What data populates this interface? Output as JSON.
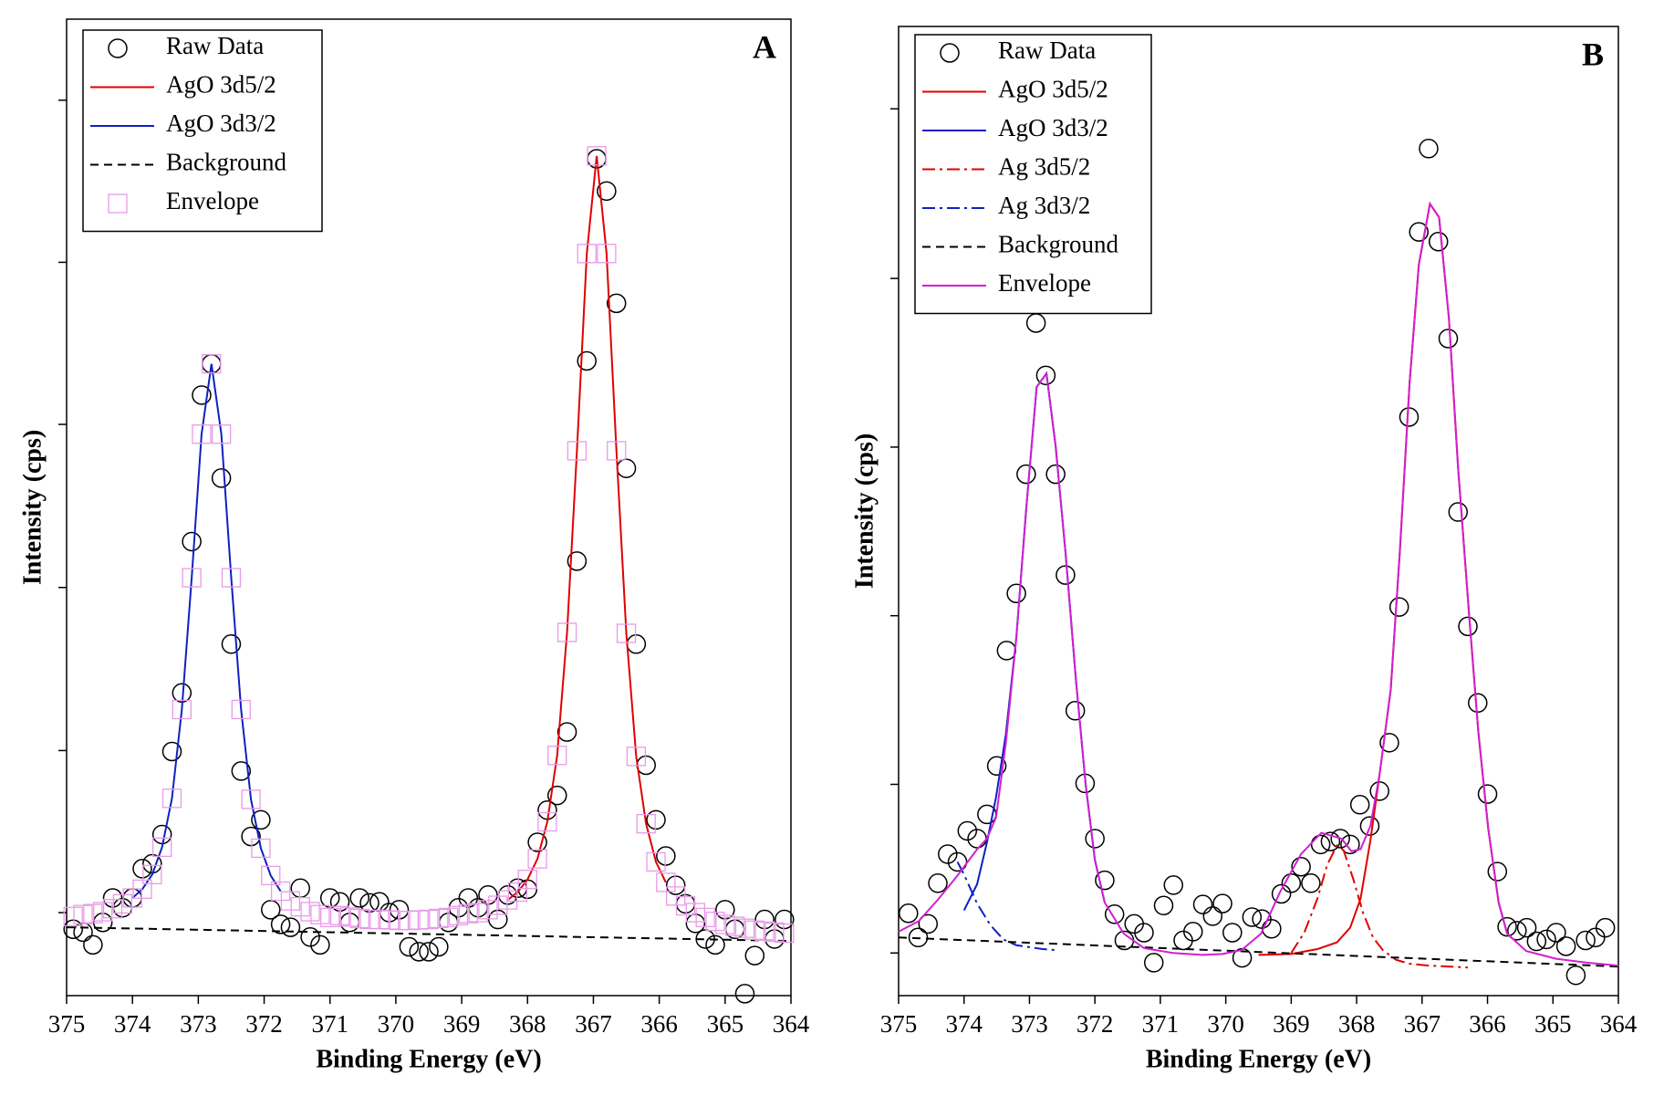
{
  "chart_data": [
    {
      "type": "scatter",
      "label": "A",
      "xlabel": "Binding Energy (eV)",
      "ylabel": "Intensity (cps)",
      "xlim": [
        375,
        364
      ],
      "ylim": [
        0,
        100
      ],
      "xticks": [
        375,
        374,
        373,
        372,
        371,
        370,
        369,
        368,
        367,
        366,
        365,
        364
      ],
      "yticks": [
        8.5,
        25.1,
        41.8,
        58.5,
        75.1,
        91.7
      ],
      "series": [
        {
          "name": "Raw Data",
          "color": "#000000",
          "kind": "marker",
          "marker": "circle",
          "x": [
            374.9,
            374.75,
            374.6,
            374.45,
            374.3,
            374.15,
            374,
            373.85,
            373.7,
            373.55,
            373.4,
            373.25,
            373.1,
            372.95,
            372.8,
            372.65,
            372.5,
            372.35,
            372.2,
            372.05,
            371.9,
            371.75,
            371.6,
            371.45,
            371.3,
            371.15,
            371,
            370.85,
            370.7,
            370.55,
            370.4,
            370.25,
            370.1,
            369.95,
            369.8,
            369.65,
            369.5,
            369.35,
            369.2,
            369.05,
            368.9,
            368.75,
            368.6,
            368.45,
            368.3,
            368.15,
            368,
            367.85,
            367.7,
            367.55,
            367.4,
            367.25,
            367.1,
            366.95,
            366.8,
            366.65,
            366.5,
            366.35,
            366.2,
            366.05,
            365.9,
            365.75,
            365.6,
            365.45,
            365.3,
            365.15,
            365,
            364.85,
            364.7,
            364.55,
            364.4,
            364.25,
            364.1
          ],
          "values": [
            6.8,
            6.5,
            5.2,
            7.5,
            10,
            9,
            10,
            13,
            13.5,
            16.5,
            25,
            31,
            46.5,
            61.5,
            64.7,
            53,
            36,
            23,
            16.3,
            18,
            8.8,
            7.3,
            7,
            11,
            6,
            5.2,
            10,
            9.6,
            7.5,
            10,
            9.5,
            9.6,
            8.5,
            8.8,
            5,
            4.5,
            4.5,
            5,
            7.5,
            9,
            10,
            9,
            10.3,
            7.8,
            10.3,
            11,
            10.9,
            15.7,
            19,
            20.5,
            27,
            44.5,
            65,
            85.7,
            82.4,
            70.9,
            54,
            36,
            23.6,
            18,
            14.3,
            11.3,
            9.4,
            7.4,
            5.8,
            5.2,
            8.8,
            6.8,
            0.2,
            4.1,
            7.8,
            5.8,
            7.8
          ]
        },
        {
          "name": "AgO 3d5/2",
          "color": "#e00000",
          "kind": "line",
          "dash": "solid",
          "x": [
            368.3,
            368.15,
            368,
            367.85,
            367.7,
            367.55,
            367.4,
            367.25,
            367.1,
            366.95,
            366.8,
            366.65,
            366.5,
            366.35,
            366.2,
            366.05,
            365.9
          ],
          "values": [
            9.8,
            10.6,
            11.9,
            14.0,
            17.8,
            24.6,
            37.2,
            55.8,
            76,
            86,
            76,
            55.8,
            37.1,
            24.5,
            17.6,
            13.7,
            11.6
          ]
        },
        {
          "name": "AgO 3d3/2",
          "color": "#1020c0",
          "kind": "line",
          "dash": "solid",
          "x": [
            374,
            373.85,
            373.7,
            373.55,
            373.4,
            373.25,
            373.1,
            372.95,
            372.8,
            372.65,
            372.5,
            372.35,
            372.2,
            372.05,
            371.9,
            371.75
          ],
          "values": [
            10.0,
            10.9,
            12.4,
            15.2,
            20.2,
            29.3,
            42.8,
            57.5,
            64.7,
            57.5,
            42.8,
            29.3,
            20.1,
            15.1,
            12.3,
            10.7
          ]
        },
        {
          "name": "Background",
          "color": "#000000",
          "kind": "line",
          "dash": "dash",
          "x": [
            375,
            364
          ],
          "values": [
            7.0,
            5.6
          ]
        },
        {
          "name": "Envelope",
          "color": "#e89ae8",
          "kind": "marker",
          "marker": "square",
          "x": [
            374.9,
            374.75,
            374.6,
            374.45,
            374.3,
            374.15,
            374,
            373.85,
            373.7,
            373.55,
            373.4,
            373.25,
            373.1,
            372.95,
            372.8,
            372.65,
            372.5,
            372.35,
            372.2,
            372.05,
            371.9,
            371.75,
            371.6,
            371.45,
            371.3,
            371.15,
            371,
            370.85,
            370.7,
            370.55,
            370.4,
            370.25,
            370.1,
            369.95,
            369.8,
            369.65,
            369.5,
            369.35,
            369.2,
            369.05,
            368.9,
            368.75,
            368.6,
            368.45,
            368.3,
            368.15,
            368,
            367.85,
            367.7,
            367.55,
            367.4,
            367.25,
            367.1,
            366.95,
            366.8,
            366.65,
            366.5,
            366.35,
            366.2,
            366.05,
            365.9,
            365.75,
            365.6,
            365.45,
            365.3,
            365.15,
            365,
            364.85,
            364.7,
            364.55,
            364.4,
            364.25,
            364.1
          ],
          "values": [
            8.1,
            8.3,
            8.4,
            8.6,
            8.9,
            9.4,
            10.0,
            10.9,
            12.4,
            15.2,
            20.2,
            29.3,
            42.8,
            57.5,
            64.7,
            57.5,
            42.8,
            29.3,
            20.1,
            15.1,
            12.3,
            10.7,
            9.7,
            9.1,
            8.6,
            8.3,
            8.0,
            8.2,
            8.05,
            7.9,
            7.8,
            7.8,
            7.75,
            7.7,
            7.7,
            7.75,
            7.8,
            7.9,
            8.0,
            8.2,
            8.4,
            8.5,
            8.8,
            9.25,
            9.8,
            10.6,
            11.9,
            14.0,
            17.8,
            24.6,
            37.2,
            55.8,
            76,
            86,
            76,
            55.8,
            37.1,
            24.5,
            17.6,
            13.7,
            11.6,
            10.2,
            9.2,
            8.5,
            8.0,
            7.6,
            7.3,
            7.1,
            6.9,
            6.7,
            6.6,
            6.5,
            6.4
          ]
        }
      ]
    },
    {
      "type": "scatter",
      "label": "B",
      "xlabel": "Binding Energy (eV)",
      "ylabel": "Intensity (cps)",
      "xlim": [
        375,
        364
      ],
      "ylim": [
        0,
        100
      ],
      "xticks": [
        375,
        374,
        373,
        372,
        371,
        370,
        369,
        368,
        367,
        366,
        365,
        364
      ],
      "yticks": [
        4.4,
        21.8,
        39.2,
        56.6,
        74.0,
        91.5
      ],
      "series": [
        {
          "name": "Raw Data",
          "color": "#000000",
          "kind": "marker",
          "marker": "circle",
          "x": [
            374.85,
            374.7,
            374.55,
            374.4,
            374.25,
            374.1,
            373.95,
            373.8,
            373.65,
            373.5,
            373.35,
            373.2,
            373.05,
            372.9,
            372.75,
            372.6,
            372.45,
            372.3,
            372.15,
            372,
            371.85,
            371.7,
            371.55,
            371.4,
            371.25,
            371.1,
            370.95,
            370.8,
            370.65,
            370.5,
            370.35,
            370.2,
            370.05,
            369.9,
            369.75,
            369.6,
            369.45,
            369.3,
            369.15,
            369,
            368.85,
            368.7,
            368.55,
            368.4,
            368.25,
            368.1,
            367.95,
            367.8,
            367.65,
            367.5,
            367.35,
            367.2,
            367.05,
            366.9,
            366.75,
            366.6,
            366.45,
            366.3,
            366.15,
            366,
            365.85,
            365.7,
            365.55,
            365.4,
            365.25,
            365.1,
            364.95,
            364.8,
            364.65,
            364.5,
            364.35,
            364.2
          ],
          "values": [
            8.5,
            6.0,
            7.4,
            11.6,
            14.6,
            13.8,
            17.0,
            16.2,
            18.7,
            23.7,
            35.6,
            41.5,
            53.8,
            69.4,
            64.0,
            53.8,
            43.4,
            29.4,
            21.9,
            16.2,
            11.9,
            8.4,
            5.7,
            7.4,
            6.5,
            3.4,
            9.3,
            11.4,
            5.7,
            6.6,
            9.4,
            8.2,
            9.5,
            6.5,
            3.9,
            8.1,
            7.9,
            6.9,
            10.5,
            11.6,
            13.3,
            11.6,
            15.6,
            15.9,
            16.2,
            15.6,
            19.7,
            17.5,
            21.1,
            26.1,
            40.1,
            59.7,
            78.8,
            87.4,
            77.8,
            67.8,
            49.9,
            38.1,
            30.2,
            20.8,
            12.8,
            7.1,
            6.7,
            7.0,
            5.6,
            5.8,
            6.5,
            5.1,
            2.1,
            5.7,
            6.0,
            7.0
          ]
        },
        {
          "name": "AgO 3d5/2",
          "color": "#e00000",
          "kind": "line",
          "dash": "solid",
          "x": [
            369.5,
            369,
            368.6,
            368.3,
            368.1,
            367.94,
            367.79,
            367.65,
            367.48,
            367.34,
            367.19,
            367.05,
            366.88,
            366.74,
            366.59,
            366.45,
            366.28,
            366.14,
            365.99,
            365.83,
            365.7
          ],
          "values": [
            4.2,
            4.3,
            4.8,
            5.5,
            7.0,
            10,
            16,
            22.8,
            31.5,
            45.8,
            63.3,
            75.4,
            81.7,
            80.3,
            69.9,
            54.5,
            39.2,
            27.2,
            17.3,
            9.6,
            6.4
          ]
        },
        {
          "name": "AgO 3d3/2",
          "color": "#1020c0",
          "kind": "line",
          "dash": "solid",
          "x": [
            374,
            373.8,
            373.65,
            373.51,
            373.36,
            373.2,
            373.05,
            372.89,
            372.74,
            372.6,
            372.45,
            372.29,
            372.14,
            372,
            371.85
          ],
          "values": [
            8.8,
            11.5,
            15.8,
            20.5,
            27,
            37,
            50.2,
            62.8,
            64.2,
            56.7,
            45.8,
            32.6,
            21.7,
            14,
            9.6
          ]
        },
        {
          "name": "Ag 3d5/2",
          "color": "#e00000",
          "kind": "line",
          "dash": "dashdot",
          "x": [
            369,
            368.8,
            368.6,
            368.45,
            368.3,
            368.2,
            368.05,
            367.9,
            367.75,
            367.6,
            367.4,
            367.2,
            366.9,
            366.6,
            366.3
          ],
          "values": [
            4.4,
            6.5,
            10,
            13.5,
            15.5,
            15,
            12,
            8.5,
            6,
            4.7,
            3.7,
            3.3,
            3.1,
            3.0,
            2.9
          ]
        },
        {
          "name": "Ag 3d3/2",
          "color": "#1020c0",
          "kind": "line",
          "dash": "dashdot",
          "x": [
            374.1,
            374,
            373.8,
            373.6,
            373.4,
            373.2,
            373,
            372.8,
            372.6
          ],
          "values": [
            13.8,
            12.5,
            9.5,
            7.3,
            5.8,
            5.2,
            5.0,
            4.8,
            4.7
          ]
        },
        {
          "name": "Background",
          "color": "#000000",
          "kind": "line",
          "dash": "dash",
          "x": [
            375,
            364
          ],
          "values": [
            6.0,
            3.0
          ]
        },
        {
          "name": "Envelope",
          "color": "#d020d0",
          "kind": "line",
          "dash": "solid",
          "x": [
            375,
            374.69,
            374.4,
            374.11,
            373.8,
            373.65,
            373.51,
            373.36,
            373.2,
            373.05,
            372.89,
            372.74,
            372.6,
            372.45,
            372.29,
            372.14,
            372,
            371.85,
            371.56,
            371.25,
            370.81,
            370.36,
            370.05,
            369.76,
            369.46,
            369.17,
            368.85,
            368.54,
            368.23,
            368.08,
            367.94,
            367.79,
            367.65,
            367.48,
            367.34,
            367.19,
            367.05,
            366.88,
            366.74,
            366.59,
            366.45,
            366.28,
            366.14,
            365.99,
            365.83,
            365.7,
            365.41,
            364.95,
            364.48,
            364
          ],
          "values": [
            6.6,
            7.7,
            9.9,
            12.3,
            15.1,
            16.2,
            18.4,
            26.1,
            37,
            50.2,
            62.8,
            64.2,
            56.7,
            45.8,
            32.6,
            21.7,
            14,
            9.6,
            6.4,
            4.9,
            4.4,
            4.2,
            4.3,
            4.7,
            6.4,
            10.7,
            14.6,
            16.8,
            16.2,
            14.9,
            15.1,
            17.5,
            22.8,
            31.5,
            45.8,
            63.3,
            75.4,
            81.7,
            80.3,
            69.9,
            54.5,
            39.2,
            27.2,
            17.3,
            9.6,
            6.4,
            4.6,
            3.8,
            3.4,
            3.1
          ]
        }
      ]
    }
  ]
}
